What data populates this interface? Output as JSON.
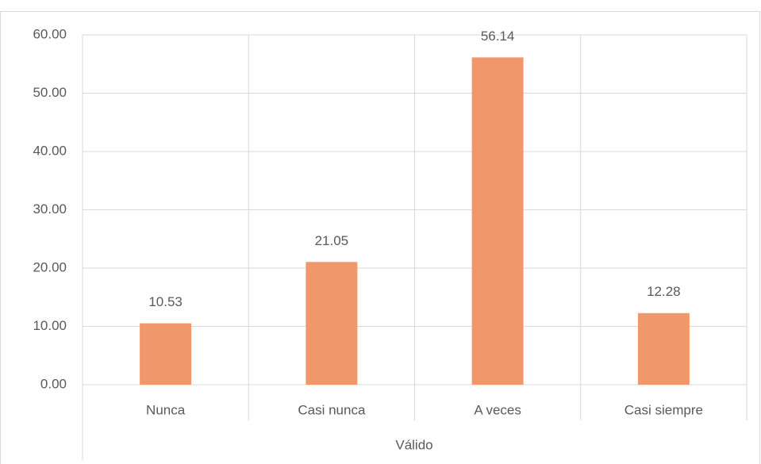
{
  "chart_data": {
    "type": "bar",
    "categories": [
      "Nunca",
      "Casi nunca",
      "A veces",
      "Casi siempre"
    ],
    "values": [
      10.53,
      21.05,
      56.14,
      12.28
    ],
    "color": "#f0986c",
    "xlabel": "Válido",
    "ylim": [
      0,
      60
    ],
    "yticks": [
      {
        "value": 0,
        "label": "0.00"
      },
      {
        "value": 10,
        "label": "10.00"
      },
      {
        "value": 20,
        "label": "20.00"
      },
      {
        "value": 30,
        "label": "30.00"
      },
      {
        "value": 40,
        "label": "40.00"
      },
      {
        "value": 50,
        "label": "50.00"
      },
      {
        "value": 60,
        "label": "60.00"
      }
    ],
    "grid": true
  }
}
